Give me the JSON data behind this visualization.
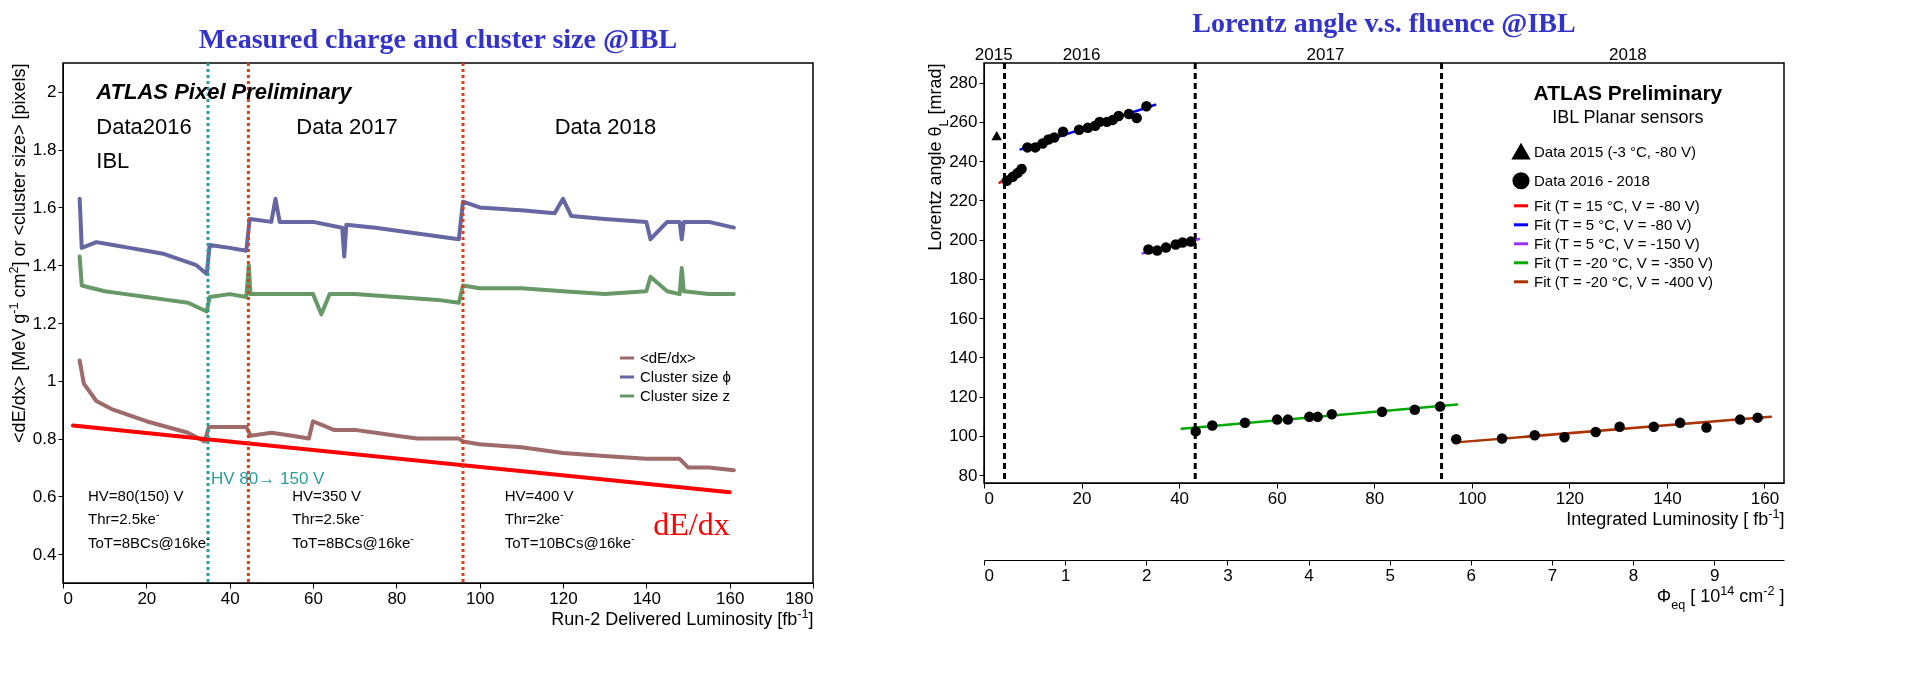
{
  "chart_data": [
    {
      "type": "line",
      "title": "Measured charge and cluster size @IBL",
      "xlabel": "Run-2 Delivered Luminosity [fb$^{-1}$]",
      "ylabel": "<dE/dx> [MeV g$^{-1}$ cm$^{2}$] or <cluster size> [pixels]",
      "xlim": [
        0,
        180
      ],
      "xticks": [
        0,
        20,
        40,
        60,
        80,
        100,
        120,
        140,
        160,
        180
      ],
      "ylim": [
        0.3,
        2.1
      ],
      "yticks": [
        0.4,
        0.6,
        0.8,
        1,
        1.2,
        1.4,
        1.6,
        1.8,
        2
      ],
      "legend": "right",
      "grid": false,
      "line_style": "solid",
      "series": [
        {
          "name": "<dE/dx>",
          "color": "#9e6a6a",
          "x": [
            4,
            5,
            8,
            12,
            16,
            20,
            25,
            30,
            34,
            35,
            40,
            44,
            45,
            50,
            55,
            59,
            60,
            65,
            70,
            75,
            80,
            85,
            90,
            95,
            96,
            100,
            110,
            120,
            130,
            140,
            148,
            150,
            155,
            161
          ],
          "values": [
            1.07,
            0.99,
            0.93,
            0.9,
            0.88,
            0.86,
            0.84,
            0.82,
            0.79,
            0.84,
            0.84,
            0.84,
            0.81,
            0.82,
            0.81,
            0.8,
            0.86,
            0.83,
            0.83,
            0.82,
            0.81,
            0.8,
            0.8,
            0.8,
            0.79,
            0.78,
            0.77,
            0.75,
            0.74,
            0.73,
            0.73,
            0.7,
            0.7,
            0.69
          ]
        },
        {
          "name": "Cluster size ϕ",
          "color": "#6666a3",
          "x": [
            4,
            4.5,
            8,
            12,
            16,
            20,
            24,
            28,
            32,
            34.5,
            35.2,
            40,
            44,
            44.8,
            50,
            51,
            52,
            60,
            67,
            67.5,
            68,
            75,
            85,
            95,
            96,
            100,
            110,
            118,
            120,
            122,
            130,
            140,
            141,
            145,
            148,
            148.5,
            149,
            155,
            161
          ],
          "values": [
            1.63,
            1.46,
            1.48,
            1.47,
            1.46,
            1.45,
            1.44,
            1.42,
            1.4,
            1.37,
            1.47,
            1.46,
            1.45,
            1.56,
            1.55,
            1.63,
            1.55,
            1.55,
            1.53,
            1.43,
            1.54,
            1.53,
            1.51,
            1.49,
            1.62,
            1.6,
            1.59,
            1.58,
            1.63,
            1.57,
            1.56,
            1.55,
            1.49,
            1.55,
            1.55,
            1.49,
            1.55,
            1.55,
            1.53
          ]
        },
        {
          "name": "Cluster size z",
          "color": "#669966",
          "x": [
            4,
            4.5,
            10,
            15,
            20,
            25,
            30,
            34.5,
            35.2,
            40,
            44,
            44.6,
            45,
            50,
            60,
            62,
            64,
            70,
            80,
            90,
            95,
            96,
            100,
            110,
            120,
            130,
            140,
            141,
            145,
            148,
            148.5,
            149,
            155,
            161
          ],
          "values": [
            1.43,
            1.33,
            1.31,
            1.3,
            1.29,
            1.28,
            1.27,
            1.24,
            1.29,
            1.3,
            1.29,
            1.4,
            1.3,
            1.3,
            1.3,
            1.23,
            1.3,
            1.3,
            1.29,
            1.28,
            1.27,
            1.33,
            1.32,
            1.32,
            1.31,
            1.3,
            1.31,
            1.36,
            1.31,
            1.3,
            1.39,
            1.31,
            1.3,
            1.3
          ]
        },
        {
          "color": "#ff0000",
          "x": [
            2.4,
            160
          ],
          "values": [
            0.845,
            0.614
          ]
        }
      ],
      "ref_lines": [
        {
          "axis": "x",
          "value": 34.8,
          "label": "HV 80→ 150 V",
          "color": "#2a9d9d",
          "line_style": "dotted"
        },
        {
          "axis": "x",
          "value": 44.5,
          "color": "#d9401b",
          "line_style": "dotted"
        },
        {
          "axis": "x",
          "value": 96,
          "color": "#d9401b",
          "line_style": "dotted"
        }
      ],
      "annotations": [
        "ATLAS Pixel Preliminary",
        "Data2016",
        "IBL",
        "Data 2017",
        "Data 2018",
        "HV=80(150) V",
        "Thr=2.5ke$^{-}$",
        "ToT=8BCs@16ke$^{-}$",
        "HV=350 V",
        "Thr=2.5ke$^{-}$",
        "ToT=8BCs@16ke$^{-}$",
        "HV=400 V",
        "Thr=2ke$^{-}$",
        "ToT=10BCs@16ke$^{-}$",
        {
          "text": "dE/dx",
          "x": 160,
          "y": 0.614
        }
      ]
    },
    {
      "type": "scatter",
      "title": "Lorentz angle v.s. fluence @IBL",
      "xlabel": "Integrated Luminosity [ fb$^{-1}$]",
      "ylabel": "Lorentz angle θ$_{L}$ [mrad]",
      "xlim": [
        0,
        164
      ],
      "xticks": [
        0,
        20,
        40,
        60,
        80,
        100,
        120,
        140,
        160
      ],
      "ylim": [
        76,
        290
      ],
      "yticks": [
        80,
        100,
        120,
        140,
        160,
        180,
        200,
        220,
        240,
        260,
        280
      ],
      "x2label": "Φ$_{eq}$ [ 10$^{14}$ cm$^{-2}$ ]",
      "x2lim": [
        0,
        9.86
      ],
      "x2ticks": [
        0,
        1,
        2,
        3,
        4,
        5,
        6,
        7,
        8,
        9
      ],
      "legend": "top right",
      "grid": false,
      "series": [
        {
          "name": "Data 2015 (-3 °C, -80 V)",
          "color": "#000000",
          "marker": "triangle",
          "x": [
            2.6
          ],
          "values": [
            253
          ]
        },
        {
          "name": "Data 2016 - 2018",
          "color": "#000000",
          "marker": "circle",
          "x": [
            4.7,
            5.9,
            6.9,
            7.7,
            8.9,
            10.5,
            12,
            13.2,
            14.4,
            16.2,
            19.5,
            21.3,
            22.8,
            23.7,
            25.2,
            26.4,
            27.6,
            29.7,
            31.3,
            33.3,
            33.7,
            35.5,
            37.3,
            39.3,
            40.7,
            42.4,
            43.4,
            46.8,
            53.5,
            60.1,
            62.3,
            66.7,
            68.4,
            71.3,
            81.6,
            88.3,
            93.5,
            96.8,
            106.2,
            112.9,
            119,
            125.4,
            130.3,
            137.3,
            142.7,
            148.1,
            155,
            158.6
          ],
          "values": [
            230,
            232,
            234,
            236,
            247,
            247,
            249,
            251,
            252,
            255,
            256,
            257,
            258,
            260,
            260,
            261,
            263,
            264,
            262,
            268,
            195,
            194.5,
            196,
            197.5,
            198.5,
            199,
            102.3,
            105.3,
            106.7,
            108.3,
            108.3,
            109.7,
            109.7,
            111,
            112.3,
            113.3,
            115,
            98.3,
            98.7,
            100.3,
            99.3,
            102,
            104.7,
            104.7,
            106.7,
            104.3,
            108.3,
            109.3
          ]
        },
        {
          "name": "Fit (T = 15 °C, V = -80 V)",
          "type": "line",
          "color": "#ff0000",
          "x": [
            3.2,
            8.1
          ],
          "values": [
            229,
            238
          ]
        },
        {
          "name": "Fit (T = 5 °C, V = -80 V)",
          "type": "line",
          "color": "#0000ff",
          "x": [
            7.5,
            35.1
          ],
          "values": [
            246,
            268.7
          ]
        },
        {
          "name": "Fit (T = 5 °C, V = -150 V)",
          "type": "line",
          "color": "#9933ff",
          "x": [
            32.5,
            44.1
          ],
          "values": [
            193,
            200.3
          ]
        },
        {
          "name": "Fit (T = -20 °C, V = -350 V)",
          "type": "line",
          "color": "#00aa00",
          "x": [
            40.5,
            97
          ],
          "values": [
            103.7,
            116
          ]
        },
        {
          "name": "Fit (T = -20 °C, V = -400 V)",
          "type": "line",
          "color": "#aa3300",
          "x": [
            96.8,
            161.3
          ],
          "values": [
            96.7,
            109.7
          ]
        }
      ],
      "ref_lines": [
        {
          "axis": "x",
          "value": 4.2,
          "color": "#000000",
          "line_style": "dashed"
        },
        {
          "axis": "x",
          "value": 43.3,
          "color": "#000000",
          "line_style": "dashed"
        },
        {
          "axis": "x",
          "value": 93.8,
          "color": "#000000",
          "line_style": "dashed"
        }
      ],
      "annotations": [
        "2015",
        "2016",
        "2017",
        "2018",
        "ATLAS Preliminary",
        "IBL Planar sensors"
      ]
    }
  ]
}
